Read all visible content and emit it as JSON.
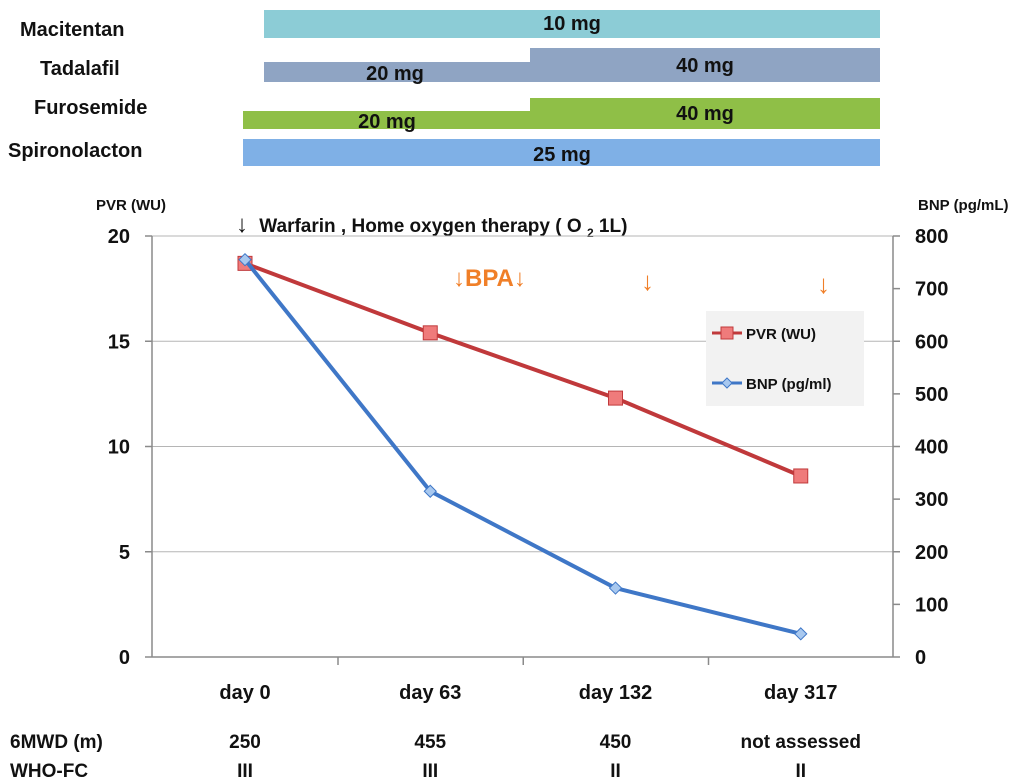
{
  "drugs": [
    {
      "name": "Macitentan",
      "doses": [
        {
          "label": "10 mg",
          "color": "#8cccd6"
        }
      ]
    },
    {
      "name": "Tadalafil",
      "doses": [
        {
          "label": "20 mg",
          "color": "#8fa4c3"
        },
        {
          "label": "40 mg",
          "color": "#8fa4c3"
        }
      ]
    },
    {
      "name": "Furosemide",
      "doses": [
        {
          "label": "20 mg",
          "color": "#8fbf47"
        },
        {
          "label": "40 mg",
          "color": "#8fbf47"
        }
      ]
    },
    {
      "name": "Spironolacton",
      "doses": [
        {
          "label": "25 mg",
          "color": "#7fb0e6"
        }
      ]
    }
  ],
  "annotations": {
    "therapy_arrow": "↓",
    "therapy_text": "Warfarin , Home oxygen therapy ( O",
    "therapy_sub": "2",
    "therapy_end": " 1L)",
    "bpa_label": "↓BPA↓",
    "bpa_arrow": "↓"
  },
  "bottom_table": {
    "rows": [
      {
        "label": "6MWD (m)",
        "values": [
          "250",
          "455",
          "450",
          "not assessed"
        ]
      },
      {
        "label": "WHO-FC",
        "values": [
          "III",
          "III",
          "II",
          "II"
        ]
      }
    ]
  },
  "chart_data": {
    "type": "line",
    "categories": [
      "day 0",
      "day 63",
      "day 132",
      "day 317"
    ],
    "y_left": {
      "label": "PVR (WU)",
      "range": [
        0,
        20
      ],
      "ticks": [
        "0",
        "5",
        "10",
        "15",
        "20"
      ]
    },
    "y_right": {
      "label": "BNP (pg/mL)",
      "range": [
        0,
        800
      ],
      "ticks": [
        "0",
        "100",
        "200",
        "300",
        "400",
        "500",
        "600",
        "700",
        "800"
      ]
    },
    "grid": true,
    "legend_position": "right",
    "series": [
      {
        "name": "PVR (WU)",
        "axis": "left",
        "color": "#c0393b",
        "marker_color": "#ef7b7b",
        "marker": "square",
        "values": [
          18.7,
          15.4,
          12.3,
          8.6
        ]
      },
      {
        "name": "BNP (pg/ml)",
        "axis": "right",
        "color": "#3f77c7",
        "marker_color": "#a8c8ef",
        "marker": "diamond",
        "values": [
          755,
          315,
          131,
          44
        ]
      }
    ]
  }
}
